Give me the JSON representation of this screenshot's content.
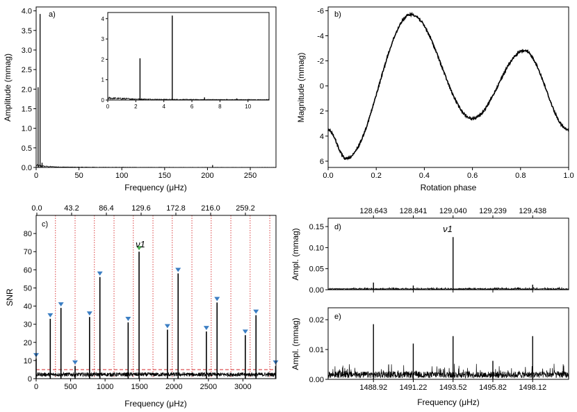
{
  "chart_data": [
    {
      "panel": "a)",
      "type": "line",
      "xlabel": "Frequency (μHz)",
      "ylabel": "Amplitude (mmag)",
      "xlim": [
        0,
        280
      ],
      "ylim": [
        0,
        4.1
      ],
      "xticks": [
        "0",
        "50",
        "100",
        "150",
        "200",
        "250"
      ],
      "yticks": [
        "0.0",
        "0.5",
        "1.0",
        "1.5",
        "2.0",
        "2.5",
        "3.0",
        "3.5",
        "4.0"
      ],
      "peaks": [
        {
          "x": 2.3,
          "y": 2.05
        },
        {
          "x": 4.6,
          "y": 3.92
        },
        {
          "x": 6.9,
          "y": 0.12
        },
        {
          "x": 206,
          "y": 0.06
        }
      ],
      "inset": {
        "xlim": [
          0,
          11.5
        ],
        "ylim": [
          0,
          4.3
        ],
        "xticks": [
          "0",
          "2",
          "4",
          "6",
          "8",
          "10"
        ],
        "yticks": [
          "0",
          "1",
          "2",
          "3",
          "4"
        ],
        "peaks": [
          {
            "x": 2.3,
            "y": 2.05
          },
          {
            "x": 4.6,
            "y": 4.15
          },
          {
            "x": 6.9,
            "y": 0.13
          },
          {
            "x": 9.2,
            "y": 0.08
          }
        ]
      }
    },
    {
      "panel": "b)",
      "type": "scatter",
      "xlabel": "Rotation phase",
      "ylabel": "Magnitude (mmag)",
      "xlim": [
        0,
        1
      ],
      "ylim": [
        6.5,
        -6.3
      ],
      "xticks": [
        "0.0",
        "0.2",
        "0.4",
        "0.6",
        "0.8",
        "1.0"
      ],
      "yticks": [
        "-6",
        "-4",
        "-2",
        "0",
        "2",
        "4",
        "6"
      ],
      "curve_points": [
        {
          "x": 0.0,
          "y": 3.5
        },
        {
          "x": 0.075,
          "y": 5.8
        },
        {
          "x": 0.345,
          "y": -5.7
        },
        {
          "x": 0.6,
          "y": 2.6
        },
        {
          "x": 0.815,
          "y": -2.8
        },
        {
          "x": 1.0,
          "y": 3.5
        }
      ]
    },
    {
      "panel": "c)",
      "type": "bar",
      "xlabel": "Frequency (μHz)",
      "ylabel": "SNR",
      "xlim": [
        0,
        3480
      ],
      "ylim": [
        0,
        90
      ],
      "xticks": [
        "0",
        "500",
        "1000",
        "1500",
        "2000",
        "2500",
        "3000"
      ],
      "yticks": [
        "0",
        "10",
        "20",
        "30",
        "40",
        "50",
        "60",
        "70",
        "80"
      ],
      "top_xticks": [
        "0.0",
        "43.2",
        "86.4",
        "129.6",
        "172.8",
        "216.0",
        "259.2"
      ],
      "threshold_snr": 5,
      "main_peak_label": "ν1",
      "peaks_snr": [
        {
          "x": 0,
          "snr": 11
        },
        {
          "x": 205,
          "snr": 33
        },
        {
          "x": 360,
          "snr": 39
        },
        {
          "x": 565,
          "snr": 7
        },
        {
          "x": 775,
          "snr": 34
        },
        {
          "x": 925,
          "snr": 56
        },
        {
          "x": 1335,
          "snr": 31
        },
        {
          "x": 1493.5,
          "snr": 70
        },
        {
          "x": 1905,
          "snr": 27
        },
        {
          "x": 2060,
          "snr": 58
        },
        {
          "x": 2470,
          "snr": 26
        },
        {
          "x": 2625,
          "snr": 42
        },
        {
          "x": 3035,
          "snr": 24
        },
        {
          "x": 3190,
          "snr": 35
        },
        {
          "x": 3475,
          "snr": 7
        }
      ],
      "harmonic_lines": [
        280,
        565,
        845,
        1130,
        1410,
        1695,
        1975,
        2260,
        2540,
        2825,
        3105,
        3390
      ]
    },
    {
      "panel": "d)",
      "type": "line",
      "ylabel": "Ampl. (mmag)",
      "xlim": [
        1486.3,
        1500.2
      ],
      "ylim": [
        0,
        0.17
      ],
      "yticks": [
        "0.00",
        "0.05",
        "0.10",
        "0.15"
      ],
      "top_xticks": [
        "128.643",
        "128.841",
        "129.040",
        "129.239",
        "129.438"
      ],
      "peak_label": "ν1",
      "peaks": [
        {
          "x": 1488.92,
          "y": 0.017
        },
        {
          "x": 1491.22,
          "y": 0.01
        },
        {
          "x": 1493.52,
          "y": 0.125
        },
        {
          "x": 1498.12,
          "y": 0.012
        }
      ]
    },
    {
      "panel": "e)",
      "type": "line",
      "xlabel": "Frequency (μHz)",
      "ylabel": "Ampl. (mmag)",
      "xlim": [
        1486.3,
        1500.2
      ],
      "ylim": [
        0,
        0.024
      ],
      "xticks": [
        "1488.92",
        "1491.22",
        "1493.52",
        "1495.82",
        "1498.12"
      ],
      "yticks": [
        "0.00",
        "0.01",
        "0.02"
      ],
      "peaks": [
        {
          "x": 1488.92,
          "y": 0.0185
        },
        {
          "x": 1491.22,
          "y": 0.012
        },
        {
          "x": 1493.52,
          "y": 0.0145
        },
        {
          "x": 1495.82,
          "y": 0.0062
        },
        {
          "x": 1498.12,
          "y": 0.0145
        }
      ]
    }
  ],
  "colors": {
    "triangle": "#3b7ec3",
    "main_triangle": "#4caf50",
    "harmonic": "#d62728",
    "threshold": "#d62728"
  }
}
